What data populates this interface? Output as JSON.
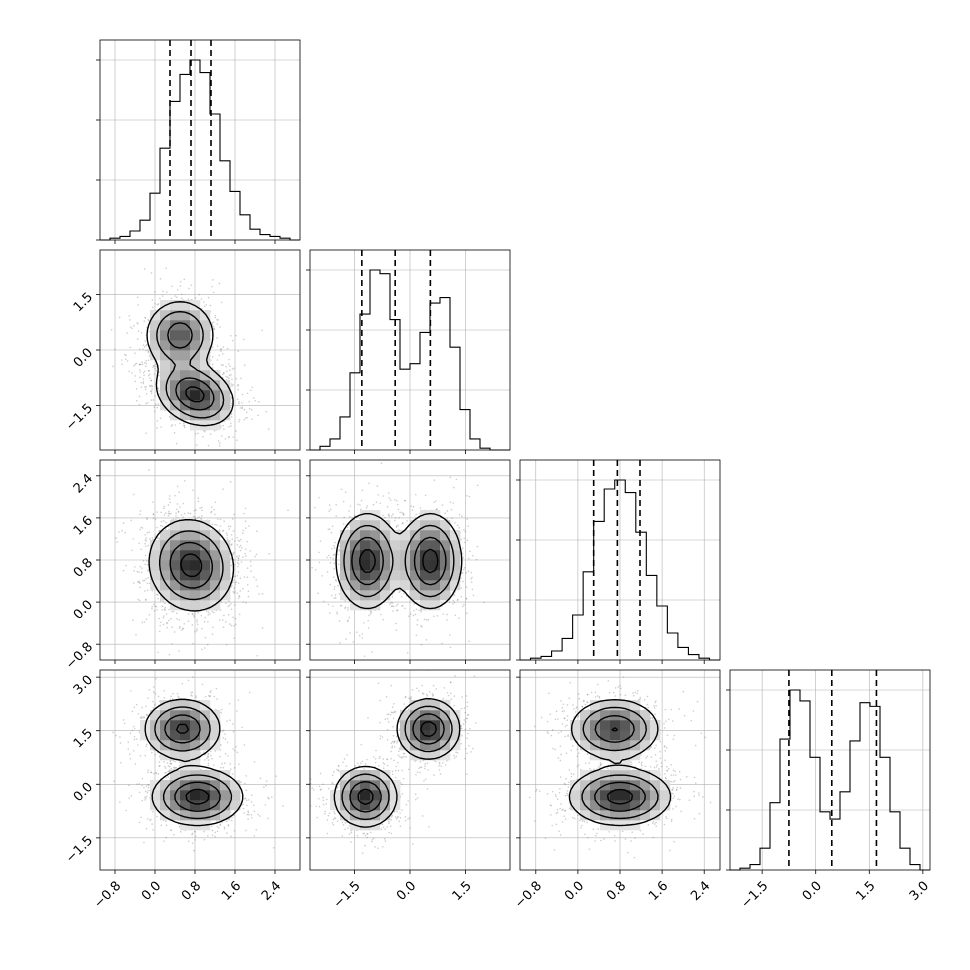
{
  "chart_data": {
    "type": "corner",
    "parameters": [
      {
        "range": [
          -1.1,
          2.9
        ],
        "ticks": [
          -0.8,
          0.0,
          0.8,
          1.6,
          2.4
        ],
        "tick_labels": [
          "−0.8",
          "0.0",
          "0.8",
          "1.6",
          "2.4"
        ],
        "quantiles": [
          0.3,
          0.72,
          1.12
        ],
        "hist_bins": [
          -1.1,
          -0.9,
          -0.7,
          -0.5,
          -0.3,
          -0.1,
          0.1,
          0.3,
          0.5,
          0.7,
          0.9,
          1.1,
          1.3,
          1.5,
          1.7,
          1.9,
          2.1,
          2.3,
          2.5,
          2.7,
          2.9
        ],
        "hist_heights": [
          0.0,
          0.01,
          0.02,
          0.05,
          0.11,
          0.26,
          0.51,
          0.77,
          0.92,
          1.0,
          0.93,
          0.7,
          0.44,
          0.27,
          0.14,
          0.06,
          0.03,
          0.02,
          0.01,
          0.0
        ],
        "modes": [
          {
            "x": 0.68,
            "spread": 0.4
          },
          {
            "x": 0.82,
            "spread": 0.45
          }
        ]
      },
      {
        "range": [
          -2.7,
          2.7
        ],
        "ticks": [
          -1.5,
          0.0,
          1.5
        ],
        "tick_labels": [
          "−1.5",
          "0.0",
          "1.5"
        ],
        "quantiles": [
          -1.3,
          -0.4,
          0.55
        ],
        "hist_bins": [
          -2.7,
          -2.43,
          -2.16,
          -1.89,
          -1.62,
          -1.35,
          -1.08,
          -0.81,
          -0.54,
          -0.27,
          0.0,
          0.27,
          0.54,
          0.81,
          1.08,
          1.35,
          1.62,
          1.89,
          2.16,
          2.43,
          2.7
        ],
        "hist_heights": [
          0.0,
          0.02,
          0.06,
          0.18,
          0.42,
          0.74,
          0.98,
          0.96,
          0.71,
          0.44,
          0.47,
          0.64,
          0.8,
          0.83,
          0.56,
          0.22,
          0.06,
          0.01,
          0.0,
          0.0
        ]
      },
      {
        "range": [
          -1.1,
          2.7
        ],
        "ticks": [
          -0.8,
          0.0,
          0.8,
          1.6,
          2.4
        ],
        "tick_labels": [
          "−0.8",
          "0.0",
          "0.8",
          "1.6",
          "2.4"
        ],
        "quantiles": [
          0.3,
          0.75,
          1.18
        ],
        "hist_bins": [
          -1.1,
          -0.9,
          -0.7,
          -0.5,
          -0.3,
          -0.1,
          0.1,
          0.3,
          0.5,
          0.7,
          0.9,
          1.1,
          1.3,
          1.5,
          1.7,
          1.9,
          2.1,
          2.3,
          2.5,
          2.7
        ],
        "hist_heights": [
          0.0,
          0.01,
          0.02,
          0.05,
          0.12,
          0.25,
          0.49,
          0.77,
          0.95,
          1.0,
          0.93,
          0.71,
          0.47,
          0.3,
          0.15,
          0.07,
          0.03,
          0.01,
          0.0
        ]
      },
      {
        "range": [
          -2.4,
          3.2
        ],
        "ticks": [
          -1.5,
          0.0,
          1.5,
          3.0
        ],
        "tick_labels": [
          "−1.5",
          "0.0",
          "1.5",
          "3.0"
        ],
        "quantiles": [
          -0.75,
          0.45,
          1.7
        ],
        "hist_bins": [
          -2.4,
          -2.12,
          -1.84,
          -1.56,
          -1.28,
          -1.0,
          -0.72,
          -0.44,
          -0.16,
          0.12,
          0.4,
          0.68,
          0.96,
          1.24,
          1.52,
          1.8,
          2.08,
          2.36,
          2.64,
          2.92,
          3.2
        ],
        "hist_heights": [
          0.0,
          0.01,
          0.03,
          0.12,
          0.37,
          0.72,
          0.99,
          0.93,
          0.62,
          0.32,
          0.28,
          0.43,
          0.71,
          0.92,
          0.9,
          0.62,
          0.32,
          0.12,
          0.03,
          0.0
        ]
      }
    ],
    "pairs": [
      {
        "row": 1,
        "col": 0,
        "x": [
          0.5,
          0.8
        ],
        "y": [
          0.4,
          -1.2
        ],
        "sx": [
          0.35,
          0.38
        ],
        "sy": [
          0.48,
          0.42
        ],
        "rho": [
          0.0,
          -0.25
        ],
        "w": [
          0.45,
          0.55
        ]
      },
      {
        "row": 2,
        "col": 0,
        "x": [
          0.6,
          0.85
        ],
        "y": [
          0.8,
          0.6
        ],
        "sx": [
          0.4,
          0.4
        ],
        "sy": [
          0.42,
          0.42
        ],
        "rho": [
          0.0,
          0.0
        ],
        "w": [
          0.5,
          0.5
        ]
      },
      {
        "row": 2,
        "col": 1,
        "x": [
          -1.15,
          0.55
        ],
        "y": [
          0.78,
          0.78
        ],
        "sx": [
          0.42,
          0.42
        ],
        "sy": [
          0.45,
          0.45
        ],
        "rho": [
          0.0,
          0.0
        ],
        "w": [
          0.5,
          0.5
        ]
      },
      {
        "row": 3,
        "col": 0,
        "x": [
          0.55,
          0.85
        ],
        "y": [
          1.55,
          -0.35
        ],
        "sx": [
          0.38,
          0.45
        ],
        "sy": [
          0.42,
          0.4
        ],
        "rho": [
          0.0,
          0.0
        ],
        "w": [
          0.45,
          0.55
        ]
      },
      {
        "row": 3,
        "col": 1,
        "x": [
          -1.2,
          0.5
        ],
        "y": [
          -0.35,
          1.55
        ],
        "sx": [
          0.42,
          0.42
        ],
        "sy": [
          0.42,
          0.42
        ],
        "rho": [
          0.0,
          0.0
        ],
        "w": [
          0.5,
          0.5
        ]
      },
      {
        "row": 3,
        "col": 2,
        "x": [
          0.7,
          0.8
        ],
        "y": [
          1.55,
          -0.35
        ],
        "sx": [
          0.42,
          0.48
        ],
        "sy": [
          0.42,
          0.4
        ],
        "rho": [
          0.0,
          0.0
        ],
        "w": [
          0.45,
          0.55
        ]
      }
    ],
    "contour_levels_sigma": [
      0.5,
      1.0,
      1.5,
      2.0
    ],
    "grid": true,
    "scatter_points": true,
    "histogram_y_ticks_labeled": false
  },
  "colors": {
    "line": "#000000",
    "grid": "#b0b0b0",
    "points": "#6f6f6f",
    "density_dark": "#2b2b2b",
    "background": "#ffffff"
  }
}
